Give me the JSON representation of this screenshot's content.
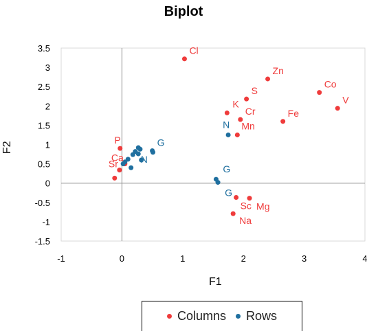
{
  "chart_data": {
    "type": "scatter",
    "title": "Biplot",
    "xlabel": "F1",
    "ylabel": "F2",
    "xlim": [
      -1,
      4
    ],
    "ylim": [
      -1.5,
      3.5
    ],
    "x_ticks": [
      -1,
      0,
      1,
      2,
      3,
      4
    ],
    "y_ticks": [
      -1.5,
      -1,
      -0.5,
      0,
      0.5,
      1,
      1.5,
      2,
      2.5,
      3,
      3.5
    ],
    "x_tick_labels": [
      "-1",
      "0",
      "1",
      "2",
      "3",
      "4"
    ],
    "y_tick_labels": [
      "-1.5",
      "-1",
      "-0.5",
      "0",
      "0.5",
      "1",
      "1.5",
      "2",
      "2.5",
      "3",
      "3.5"
    ],
    "grid": false,
    "legend_position": "bottom",
    "colors": {
      "columns": "#ef3b3b",
      "rows": "#1f6f9f"
    },
    "series": [
      {
        "name": "Columns",
        "points": [
          {
            "label": "Cl",
            "x": 1.03,
            "y": 3.22
          },
          {
            "label": "Zn",
            "x": 2.4,
            "y": 2.7
          },
          {
            "label": "S",
            "x": 2.05,
            "y": 2.18
          },
          {
            "label": "Co",
            "x": 3.25,
            "y": 2.35
          },
          {
            "label": "V",
            "x": 3.55,
            "y": 1.94
          },
          {
            "label": "K",
            "x": 1.73,
            "y": 1.82
          },
          {
            "label": "Cr",
            "x": 1.95,
            "y": 1.65
          },
          {
            "label": "Fe",
            "x": 2.65,
            "y": 1.6
          },
          {
            "label": "Mn",
            "x": 1.9,
            "y": 1.25
          },
          {
            "label": "P",
            "x": -0.03,
            "y": 0.9
          },
          {
            "label": "Ca",
            "x": 0.05,
            "y": 0.5
          },
          {
            "label": "Sr",
            "x": -0.04,
            "y": 0.34
          },
          {
            "label": "",
            "x": -0.12,
            "y": 0.13
          },
          {
            "label": "Sc",
            "x": 1.88,
            "y": -0.37
          },
          {
            "label": "Mg",
            "x": 2.1,
            "y": -0.39
          },
          {
            "label": "Na",
            "x": 1.83,
            "y": -0.79
          }
        ]
      },
      {
        "name": "Rows",
        "points": [
          {
            "label": "N",
            "x": 1.75,
            "y": 1.25
          },
          {
            "label": "G",
            "x": 0.5,
            "y": 0.84
          },
          {
            "label": "",
            "x": 0.27,
            "y": 0.92
          },
          {
            "label": "",
            "x": 0.3,
            "y": 0.88
          },
          {
            "label": "",
            "x": 0.22,
            "y": 0.82
          },
          {
            "label": "",
            "x": 0.18,
            "y": 0.74
          },
          {
            "label": "",
            "x": 0.27,
            "y": 0.76
          },
          {
            "label": "",
            "x": 0.51,
            "y": 0.8
          },
          {
            "label": "N",
            "x": 0.32,
            "y": 0.6
          },
          {
            "label": "",
            "x": 0.1,
            "y": 0.62
          },
          {
            "label": "",
            "x": 0.05,
            "y": 0.55
          },
          {
            "label": "",
            "x": 0.02,
            "y": 0.5
          },
          {
            "label": "",
            "x": 0.15,
            "y": 0.4
          },
          {
            "label": "G",
            "x": 1.55,
            "y": 0.1
          },
          {
            "label": "G",
            "x": 1.58,
            "y": 0.02
          }
        ]
      }
    ]
  },
  "legend": {
    "columns_label": "Columns",
    "rows_label": "Rows"
  }
}
